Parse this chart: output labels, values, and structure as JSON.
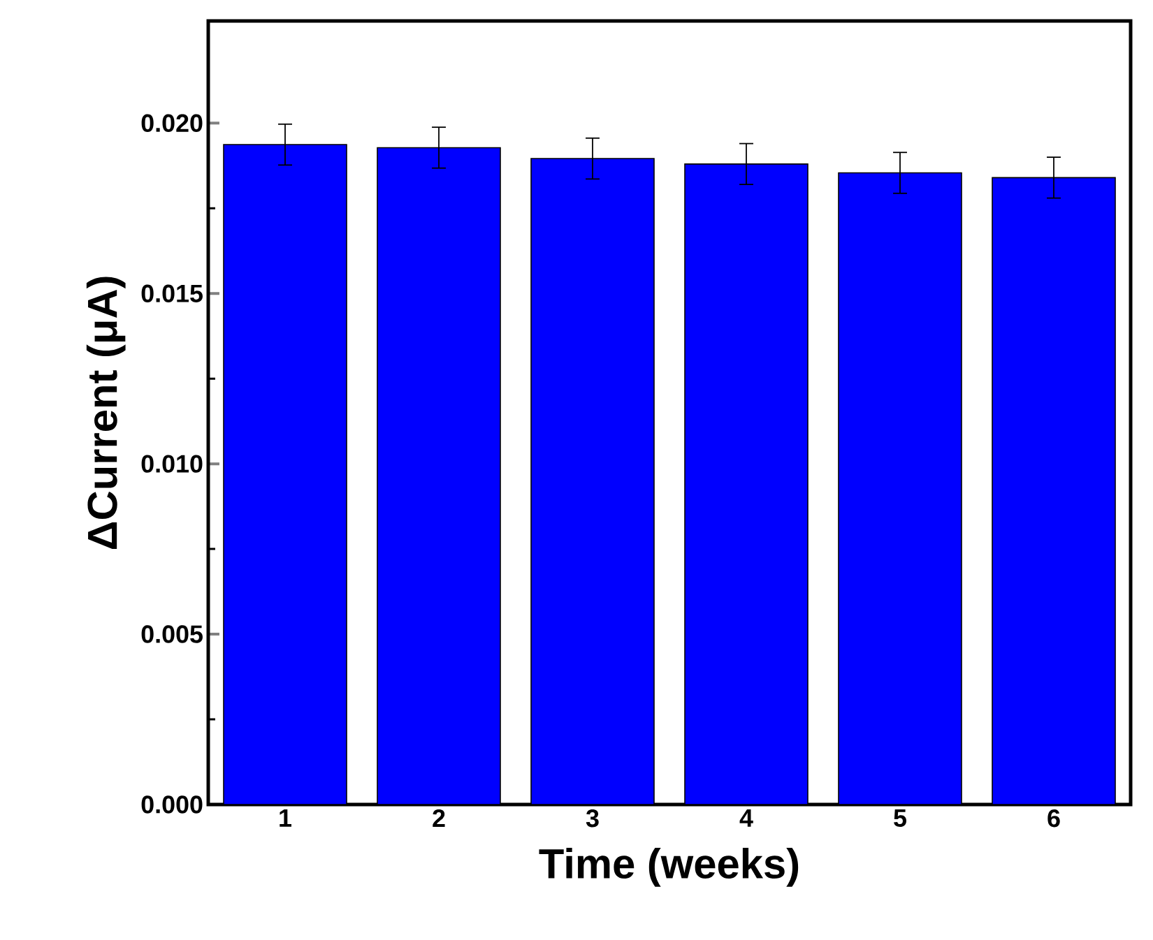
{
  "chart_data": {
    "type": "bar",
    "xlabel": "Time (weeks)",
    "ylabel": "ΔCurrent (μA)",
    "categories": [
      "1",
      "2",
      "3",
      "4",
      "5",
      "6"
    ],
    "values": [
      0.01937,
      0.01928,
      0.01896,
      0.0188,
      0.01854,
      0.0184
    ],
    "errors": [
      0.0006,
      0.0006,
      0.0006,
      0.0006,
      0.0006,
      0.0006
    ],
    "color": "#0000ff",
    "ylim": [
      0,
      0.023
    ],
    "yticks": [
      {
        "value": 0,
        "label": "0.000"
      },
      {
        "value": 0.005,
        "label": "0.005"
      },
      {
        "value": 0.01,
        "label": "0.010"
      },
      {
        "value": 0.015,
        "label": "0.015"
      },
      {
        "value": 0.02,
        "label": "0.020"
      }
    ],
    "grid": false
  }
}
